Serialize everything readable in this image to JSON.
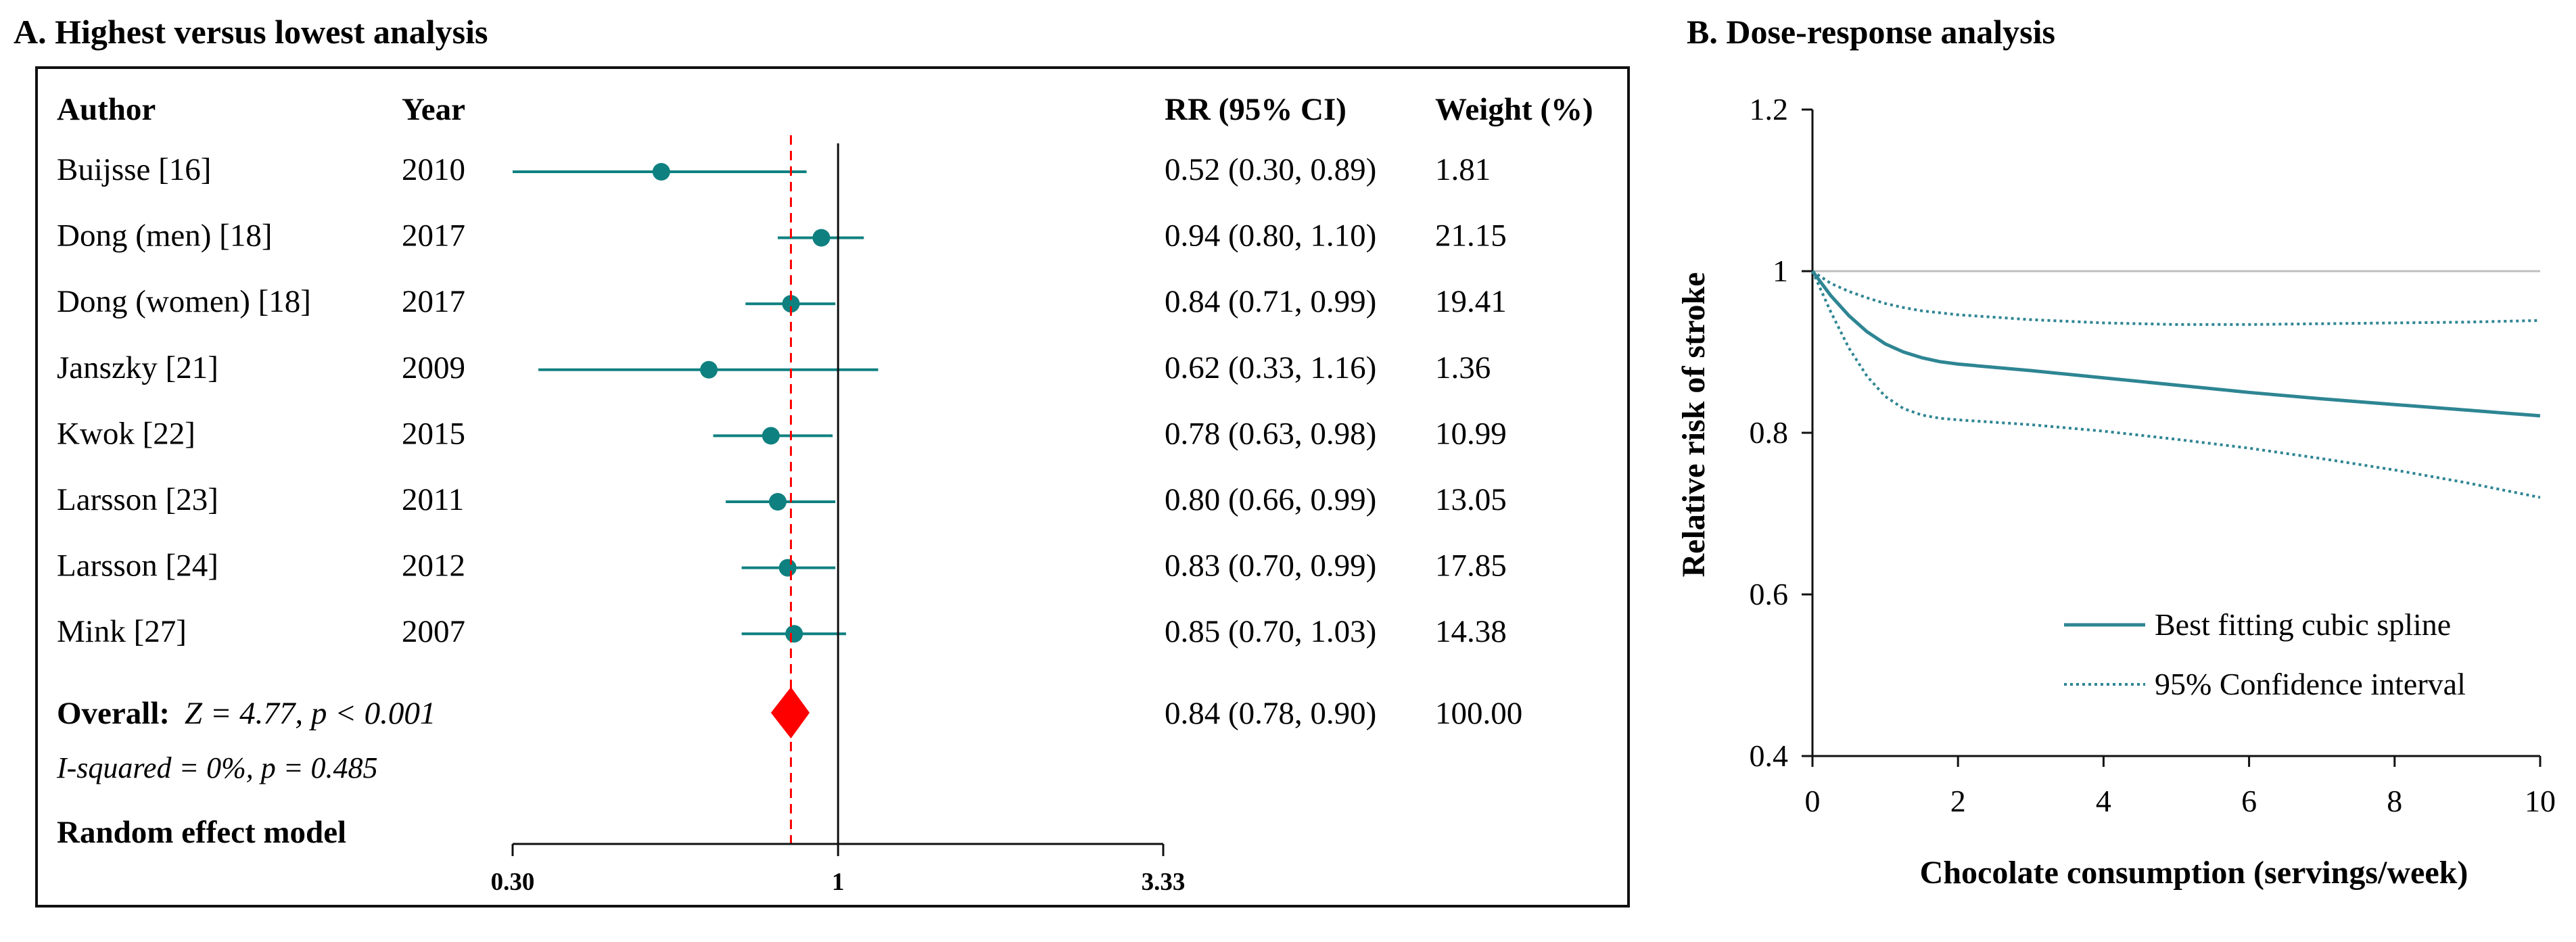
{
  "chart_data": [
    {
      "type": "forest",
      "panel_title": "A. Highest versus lowest analysis",
      "headers": {
        "author": "Author",
        "year": "Year",
        "rr": "RR (95% CI)",
        "weight": "Weight (%)"
      },
      "studies": [
        {
          "author": "Buijsse [16]",
          "year": "2010",
          "rr": 0.52,
          "lo": 0.3,
          "hi": 0.89,
          "rr_text": "0.52 (0.30, 0.89)",
          "weight": "1.81"
        },
        {
          "author": "Dong (men) [18]",
          "year": "2017",
          "rr": 0.94,
          "lo": 0.8,
          "hi": 1.1,
          "rr_text": "0.94 (0.80, 1.10)",
          "weight": "21.15"
        },
        {
          "author": "Dong (women) [18]",
          "year": "2017",
          "rr": 0.84,
          "lo": 0.71,
          "hi": 0.99,
          "rr_text": "0.84 (0.71, 0.99)",
          "weight": "19.41"
        },
        {
          "author": "Janszky [21]",
          "year": "2009",
          "rr": 0.62,
          "lo": 0.33,
          "hi": 1.16,
          "rr_text": "0.62 (0.33, 1.16)",
          "weight": "1.36"
        },
        {
          "author": "Kwok [22]",
          "year": "2015",
          "rr": 0.78,
          "lo": 0.63,
          "hi": 0.98,
          "rr_text": "0.78 (0.63, 0.98)",
          "weight": "10.99"
        },
        {
          "author": "Larsson [23]",
          "year": "2011",
          "rr": 0.8,
          "lo": 0.66,
          "hi": 0.99,
          "rr_text": "0.80 (0.66, 0.99)",
          "weight": "13.05"
        },
        {
          "author": "Larsson [24]",
          "year": "2012",
          "rr": 0.83,
          "lo": 0.7,
          "hi": 0.99,
          "rr_text": "0.83 (0.70, 0.99)",
          "weight": "17.85"
        },
        {
          "author": "Mink [27]",
          "year": "2007",
          "rr": 0.85,
          "lo": 0.7,
          "hi": 1.03,
          "rr_text": "0.85 (0.70, 1.03)",
          "weight": "14.38"
        }
      ],
      "overall": {
        "label": "Overall:",
        "stat": "Z = 4.77, p < 0.001",
        "rr": 0.84,
        "lo": 0.78,
        "hi": 0.9,
        "rr_text": "0.84 (0.78, 0.90)",
        "weight": "100.00"
      },
      "heterogeneity": "I-squared = 0%, p = 0.485",
      "model": "Random effect model",
      "x_scale": "log",
      "xlim": [
        0.3,
        3.33
      ],
      "x_ticks": [
        0.3,
        1,
        3.33
      ],
      "x_tick_labels": [
        "0.30",
        "1",
        "3.33"
      ],
      "null_line": 1,
      "colors": {
        "point": "#0f8080",
        "diamond": "#ff0000",
        "overall_line": "#ff0000"
      }
    },
    {
      "type": "line",
      "panel_title": "B. Dose-response analysis",
      "xlabel": "Chocolate consumption (servings/week)",
      "ylabel": "Relative risk of stroke",
      "xlim": [
        0,
        10
      ],
      "ylim": [
        0.4,
        1.2
      ],
      "x_ticks": [
        0,
        2,
        4,
        6,
        8,
        10
      ],
      "y_ticks": [
        0.4,
        0.6,
        0.8,
        1,
        1.2
      ],
      "y_tick_labels": [
        "0.4",
        "0.6",
        "0.8",
        "1",
        "1.2"
      ],
      "reference_line": 1,
      "series": [
        {
          "name": "Best fitting cubic spline",
          "style": "solid",
          "x": [
            0,
            0.25,
            0.5,
            0.75,
            1,
            1.25,
            1.5,
            1.75,
            2,
            3,
            4,
            5,
            6,
            7,
            8,
            9,
            10
          ],
          "y": [
            1.0,
            0.97,
            0.945,
            0.925,
            0.91,
            0.9,
            0.893,
            0.888,
            0.885,
            0.877,
            0.868,
            0.859,
            0.85,
            0.842,
            0.835,
            0.828,
            0.821
          ]
        },
        {
          "name": "95% Confidence interval",
          "style": "dotted",
          "x": [
            0,
            0.25,
            0.5,
            0.75,
            1,
            1.25,
            1.5,
            2,
            3,
            4,
            5,
            6,
            7,
            8,
            9,
            10
          ],
          "y": [
            1.0,
            0.985,
            0.975,
            0.967,
            0.96,
            0.955,
            0.951,
            0.946,
            0.94,
            0.936,
            0.934,
            0.934,
            0.935,
            0.936,
            0.937,
            0.939
          ]
        },
        {
          "name": "95% Confidence interval (lower)",
          "style": "dotted",
          "x": [
            0,
            0.25,
            0.5,
            0.75,
            1,
            1.25,
            1.5,
            1.75,
            2,
            3,
            4,
            5,
            6,
            7,
            8,
            9,
            10
          ],
          "y": [
            1.0,
            0.95,
            0.905,
            0.87,
            0.845,
            0.83,
            0.822,
            0.818,
            0.816,
            0.81,
            0.802,
            0.792,
            0.781,
            0.768,
            0.754,
            0.738,
            0.72
          ]
        }
      ],
      "legend": [
        {
          "label": "Best fitting cubic spline",
          "style": "solid"
        },
        {
          "label": "95% Confidence interval",
          "style": "dotted"
        }
      ],
      "legend_position": "bottom-right",
      "colors": {
        "line": "#2e8593",
        "reference": "#bfbfbf"
      }
    }
  ]
}
